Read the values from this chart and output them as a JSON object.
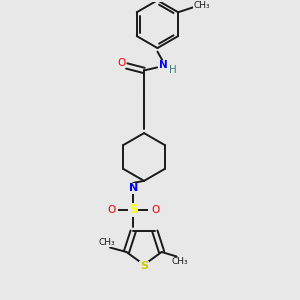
{
  "background_color": "#e8e8e8",
  "figsize": [
    3.0,
    3.0
  ],
  "dpi": 100,
  "bond_color": "#1a1a1a",
  "bond_width": 1.4,
  "N_color": "#0000ee",
  "O_color": "#ee0000",
  "S_thio_color": "#cccc00",
  "S_sulfonyl_color": "#ffff00",
  "H_color": "#408080",
  "text_size": 7.5,
  "text_size_small": 6.5,
  "xlim": [
    0,
    10
  ],
  "ylim": [
    0,
    10
  ]
}
